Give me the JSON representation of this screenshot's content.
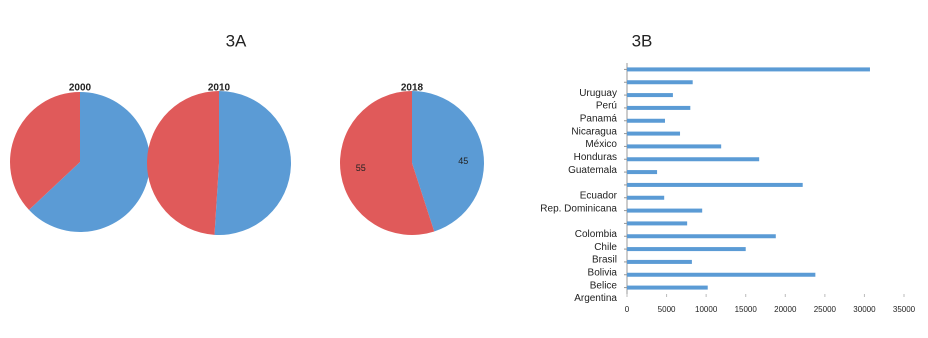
{
  "panel_labels": [
    "3A",
    "3B"
  ],
  "chart_data": [
    {
      "type": "pie",
      "title": "2000",
      "values": [
        63,
        37
      ],
      "colors": [
        "#5b9bd5",
        "#e05a5a"
      ],
      "show_value_labels": false
    },
    {
      "type": "pie",
      "title": "2010",
      "values": [
        51,
        49
      ],
      "colors": [
        "#5b9bd5",
        "#e05a5a"
      ],
      "show_value_labels": false
    },
    {
      "type": "pie",
      "title": "2018",
      "values": [
        45,
        55
      ],
      "colors": [
        "#5b9bd5",
        "#e05a5a"
      ],
      "show_value_labels": true
    },
    {
      "type": "hbar",
      "categories": [
        null,
        "Uruguay",
        "Perú",
        "Panamá",
        "Nicaragua",
        "México",
        "Honduras",
        "Guatemala",
        null,
        "Ecuador",
        "Rep. Dominicana",
        null,
        "Colombia",
        "Chile",
        "Brasil",
        "Bolivia",
        "Belice",
        "Argentina"
      ],
      "values": [
        30700,
        8300,
        5800,
        8000,
        4800,
        6700,
        11900,
        16700,
        3800,
        22200,
        4700,
        9500,
        7600,
        18800,
        15000,
        8200,
        23800,
        10200
      ],
      "color": "#5b9bd5",
      "xlim": [
        0,
        35000
      ],
      "xticks": [
        0,
        5000,
        10000,
        15000,
        20000,
        25000,
        30000,
        35000
      ]
    }
  ]
}
